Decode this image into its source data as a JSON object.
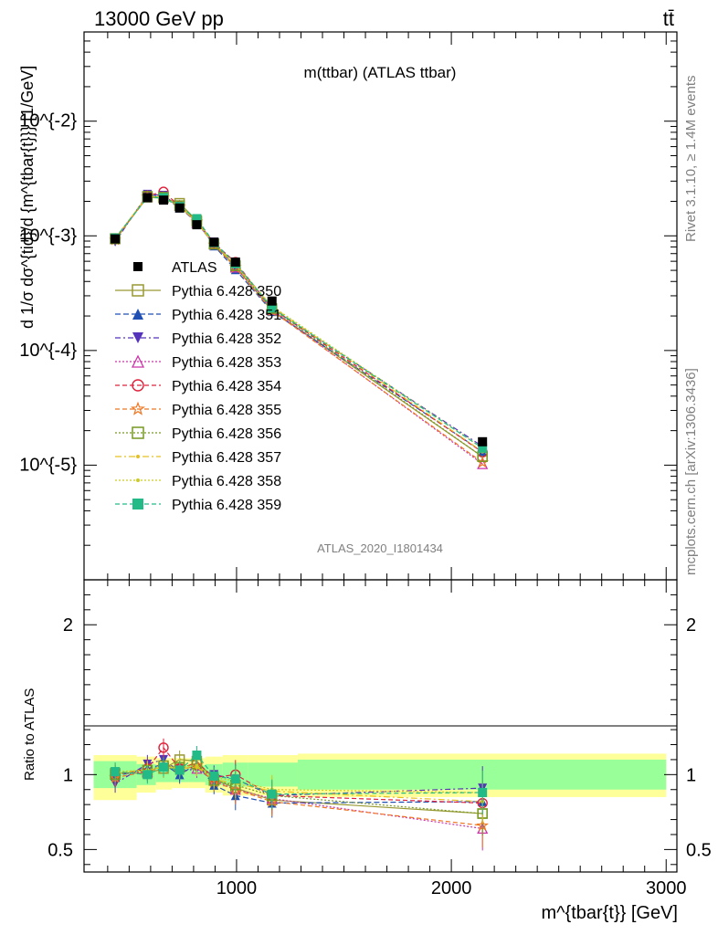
{
  "header": {
    "left": "13000 GeV pp",
    "right": "tt̄"
  },
  "side_labels": {
    "rivet": "Rivet 3.1.10, ≥ 1.4M events",
    "mcplots": "mcplots.cern.ch [arXiv:1306.3436]"
  },
  "watermark": "ATLAS_2020_I1801434",
  "colors": {
    "band_inner": "#99ff99",
    "band_outer": "#ffff99",
    "data": "#000000"
  },
  "chart_data": {
    "type": "line",
    "title": "m(ttbar) (ATLAS ttbar)",
    "xlabel": "m^{tbar{t}} [GeV]",
    "ylabel": "d 1/σ dσ^{tid}/d {m^{tbar{t}}} [1/GeV]",
    "ratio_ylabel": "Ratio to ATLAS",
    "xlim": [
      290,
      3050
    ],
    "ylim": [
      1e-06,
      0.06
    ],
    "yscale": "log",
    "ratio_ylim": [
      0.35,
      2.3
    ],
    "x_ticks": [
      "1000",
      "2000",
      "3000"
    ],
    "y_ticks": [
      "10^{-5}",
      "10^{-4}",
      "10^{-3}",
      "10^{-2}"
    ],
    "ratio_ticks": [
      "0.5",
      "1",
      "2"
    ],
    "legend_position": "left",
    "x": [
      435,
      585,
      660,
      735,
      815,
      895,
      995,
      1165,
      2145
    ],
    "band_edges": [
      335,
      535,
      625,
      700,
      775,
      855,
      935,
      1055,
      1285,
      3000
    ],
    "band_inner": [
      [
        0.91,
        1.09
      ],
      [
        0.93,
        1.07
      ],
      [
        0.95,
        1.06
      ],
      [
        0.95,
        1.06
      ],
      [
        0.95,
        1.06
      ],
      [
        0.93,
        1.07
      ],
      [
        0.92,
        1.08
      ],
      [
        0.92,
        1.08
      ],
      [
        0.9,
        1.1
      ]
    ],
    "band_outer": [
      [
        0.83,
        1.13
      ],
      [
        0.88,
        1.12
      ],
      [
        0.9,
        1.11
      ],
      [
        0.91,
        1.11
      ],
      [
        0.91,
        1.11
      ],
      [
        0.88,
        1.12
      ],
      [
        0.86,
        1.13
      ],
      [
        0.86,
        1.13
      ],
      [
        0.85,
        1.14
      ]
    ],
    "data": {
      "name": "ATLAS",
      "values": [
        0.00094,
        0.00215,
        0.00205,
        0.00175,
        0.00125,
        0.00088,
        0.00059,
        0.00027,
        1.6e-05
      ]
    },
    "series": [
      {
        "name": "Pythia 6.428 350",
        "color": "#999933",
        "dash": "",
        "marker": "square-open",
        "ratio": [
          1.01,
          1.01,
          1.04,
          1.1,
          1.09,
          0.97,
          0.91,
          0.83,
          0.74
        ]
      },
      {
        "name": "Pythia 6.428 351",
        "color": "#1f4fb3",
        "dash": "6,3",
        "marker": "triangle-up",
        "ratio": [
          0.99,
          1.04,
          1.07,
          1.0,
          1.07,
          0.93,
          0.86,
          0.81,
          0.82
        ]
      },
      {
        "name": "Pythia 6.428 352",
        "color": "#5533bb",
        "dash": "6,3,2,3",
        "marker": "triangle-down",
        "ratio": [
          0.94,
          1.07,
          1.1,
          1.02,
          1.04,
          1.0,
          0.97,
          0.86,
          0.91
        ]
      },
      {
        "name": "Pythia 6.428 353",
        "color": "#cc33aa",
        "dash": "2,2",
        "marker": "triangle-open",
        "ratio": [
          1.0,
          1.02,
          1.06,
          1.05,
          1.04,
          0.96,
          0.9,
          0.84,
          0.64
        ]
      },
      {
        "name": "Pythia 6.428 354",
        "color": "#e0203a",
        "dash": "5,3",
        "marker": "circle-open",
        "ratio": [
          1.0,
          1.04,
          1.18,
          1.04,
          1.08,
          0.98,
          1.0,
          0.86,
          0.81
        ]
      },
      {
        "name": "Pythia 6.428 355",
        "color": "#ee7722",
        "dash": "5,3",
        "marker": "star",
        "ratio": [
          0.98,
          1.02,
          1.05,
          1.03,
          1.06,
          0.95,
          0.9,
          0.82,
          0.66
        ]
      },
      {
        "name": "Pythia 6.428 356",
        "color": "#779922",
        "dash": "2,2",
        "marker": "square-open",
        "ratio": [
          1.0,
          1.03,
          1.06,
          1.05,
          1.07,
          0.96,
          0.93,
          0.86,
          0.74
        ]
      },
      {
        "name": "Pythia 6.428 357",
        "color": "#e6c020",
        "dash": "7,3,2,3",
        "marker": "dot",
        "ratio": [
          1.01,
          1.03,
          1.05,
          1.04,
          1.05,
          0.97,
          0.94,
          0.89,
          0.82
        ]
      },
      {
        "name": "Pythia 6.428 358",
        "color": "#cccc22",
        "dash": "2,2",
        "marker": "dot",
        "ratio": [
          1.02,
          1.03,
          1.05,
          1.05,
          1.06,
          0.98,
          0.96,
          0.9,
          0.88
        ]
      },
      {
        "name": "Pythia 6.428 359",
        "color": "#22bb88",
        "dash": "5,3",
        "marker": "square",
        "ratio": [
          1.02,
          1.0,
          1.05,
          1.03,
          1.13,
          0.99,
          0.97,
          0.87,
          0.88
        ]
      }
    ]
  }
}
